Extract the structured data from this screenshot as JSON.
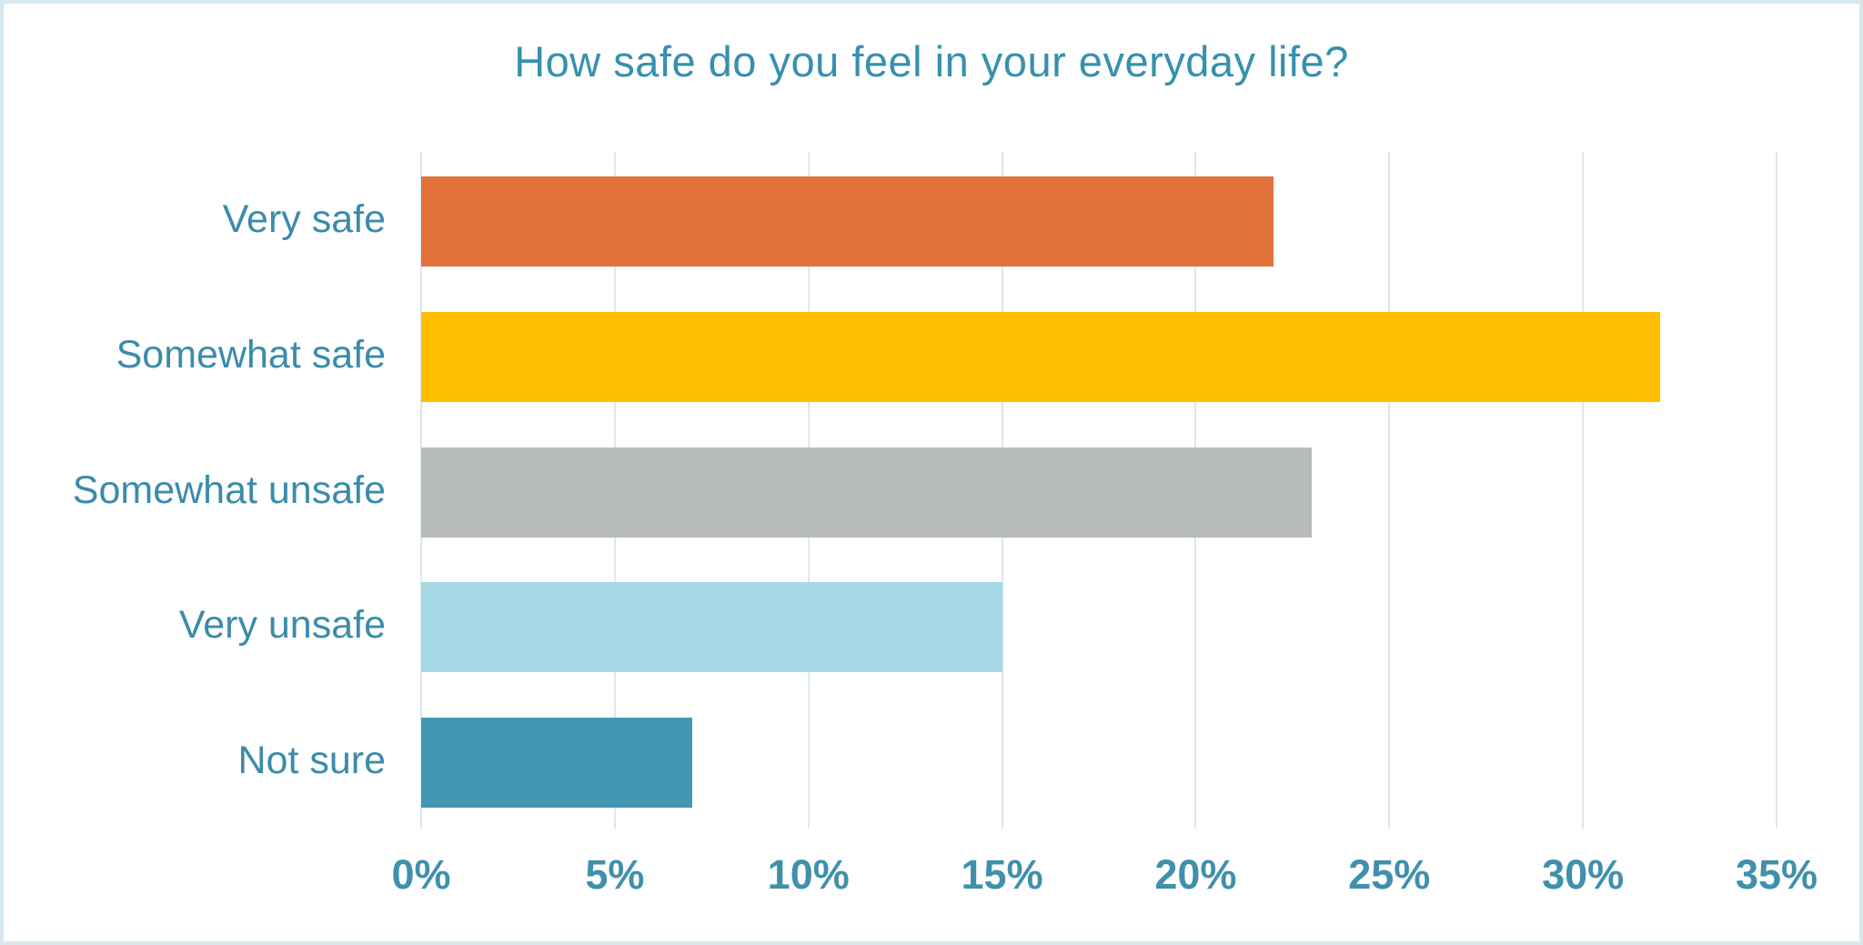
{
  "chart_data": {
    "type": "bar",
    "orientation": "horizontal",
    "title": "How safe do you feel in your everyday life?",
    "categories": [
      "Very safe",
      "Somewhat safe",
      "Somewhat unsafe",
      "Very unsafe",
      "Not sure"
    ],
    "values": [
      22,
      32,
      23,
      15,
      7
    ],
    "unit": "%",
    "xlabel": "",
    "ylabel": "",
    "xlim": [
      0,
      35
    ],
    "x_ticks": [
      "0%",
      "5%",
      "10%",
      "15%",
      "20%",
      "25%",
      "30%",
      "35%"
    ],
    "grid": true,
    "legend": false,
    "bar_colors": [
      "#e1713b",
      "#ffbf00",
      "#b7bcbb",
      "#a5d9e6",
      "#4497b3"
    ],
    "colors": {
      "title_text": "#3790ae",
      "category_text": "#3b8caa",
      "tick_text": "#4090ac",
      "gridline": "#dce8f1",
      "frame_border": "#d7e8ee",
      "background": "#ffffff"
    }
  }
}
